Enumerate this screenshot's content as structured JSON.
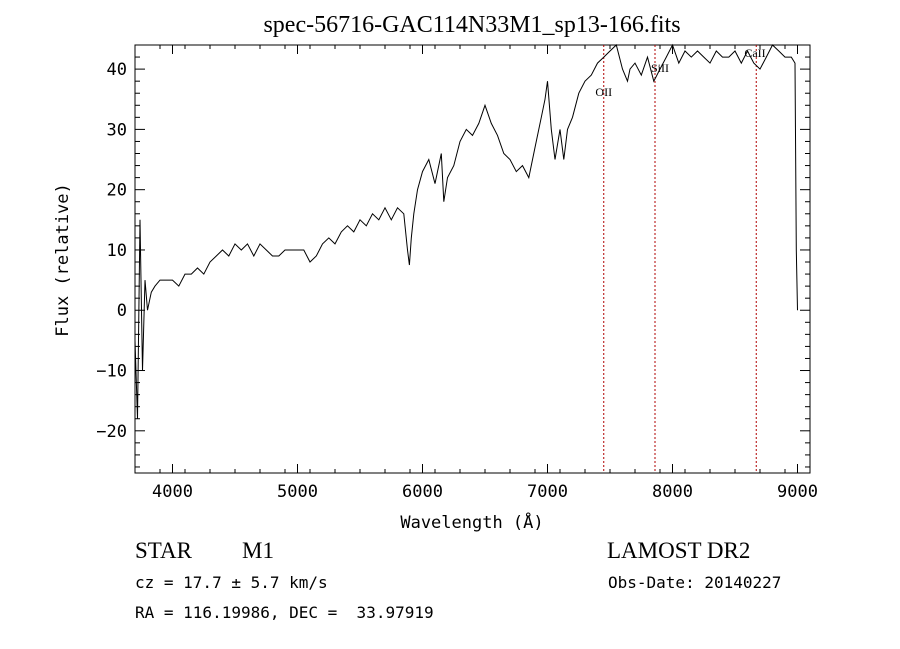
{
  "chart_data": {
    "type": "line",
    "title": "spec-56716-GAC114N33M1_sp13-166.fits",
    "xlabel": "Wavelength (Å)",
    "ylabel": "Flux (relative)",
    "xlim": [
      3700,
      9100
    ],
    "ylim": [
      -27,
      44
    ],
    "xticks": [
      4000,
      5000,
      6000,
      7000,
      8000,
      9000
    ],
    "yticks": [
      -20,
      -10,
      0,
      10,
      20,
      30,
      40
    ],
    "grid": false,
    "series": [
      {
        "x": [
          3700,
          3720,
          3740,
          3760,
          3780,
          3800,
          3830,
          3860,
          3900,
          3950,
          4000,
          4050,
          4100,
          4150,
          4200,
          4250,
          4300,
          4350,
          4400,
          4450,
          4500,
          4550,
          4600,
          4650,
          4700,
          4750,
          4800,
          4850,
          4900,
          4950,
          5000,
          5050,
          5100,
          5150,
          5200,
          5250,
          5300,
          5350,
          5400,
          5450,
          5500,
          5550,
          5600,
          5650,
          5700,
          5750,
          5800,
          5850,
          5880,
          5895,
          5910,
          5930,
          5960,
          6000,
          6050,
          6100,
          6150,
          6170,
          6200,
          6250,
          6300,
          6350,
          6400,
          6450,
          6500,
          6550,
          6600,
          6650,
          6700,
          6750,
          6800,
          6850,
          6900,
          6950,
          6980,
          7000,
          7030,
          7060,
          7100,
          7130,
          7160,
          7200,
          7250,
          7300,
          7350,
          7400,
          7450,
          7500,
          7550,
          7600,
          7640,
          7660,
          7700,
          7750,
          7800,
          7850,
          7900,
          7950,
          8000,
          8050,
          8100,
          8150,
          8200,
          8250,
          8300,
          8350,
          8400,
          8450,
          8500,
          8550,
          8600,
          8650,
          8700,
          8750,
          8800,
          8850,
          8900,
          8950,
          8980,
          8990,
          9000
        ],
        "y": [
          -5,
          -18,
          15,
          -10,
          5,
          0,
          3,
          4,
          5,
          5,
          5,
          4,
          6,
          6,
          7,
          6,
          8,
          9,
          10,
          9,
          11,
          10,
          11,
          9,
          11,
          10,
          9,
          9,
          10,
          10,
          10,
          10,
          8,
          9,
          11,
          12,
          11,
          13,
          14,
          13,
          15,
          14,
          16,
          15,
          17,
          15,
          17,
          16,
          10,
          7.5,
          12,
          16,
          20,
          23,
          25,
          21,
          26,
          18,
          22,
          24,
          28,
          30,
          29,
          31,
          34,
          31,
          29,
          26,
          25,
          23,
          24,
          22,
          27,
          32,
          35,
          38,
          30,
          25,
          30,
          25,
          30,
          32,
          36,
          38,
          39,
          41,
          42,
          43,
          44,
          40,
          38,
          40,
          41,
          39,
          42,
          38,
          40,
          42,
          44,
          41,
          43,
          42,
          43,
          42,
          41,
          43,
          42,
          42,
          43,
          41,
          43,
          41,
          40,
          42,
          44,
          43,
          42,
          42,
          41,
          10,
          0
        ]
      }
    ],
    "annotations": [
      {
        "label": "OII",
        "x": 7450,
        "y": 35.5
      },
      {
        "label": "SiII",
        "x": 7900,
        "y": 39.5
      },
      {
        "label": "CaII",
        "x": 8660,
        "y": 42
      }
    ],
    "vlines": [
      7450,
      7860,
      8670
    ]
  },
  "info": {
    "object_class": "STAR",
    "subclass": "M1",
    "survey": "LAMOST DR2",
    "cz": "cz = 17.7 ± 5.7 km/s",
    "obs_date": "Obs-Date: 20140227",
    "radec": "RA = 116.19986, DEC =  33.97919"
  }
}
